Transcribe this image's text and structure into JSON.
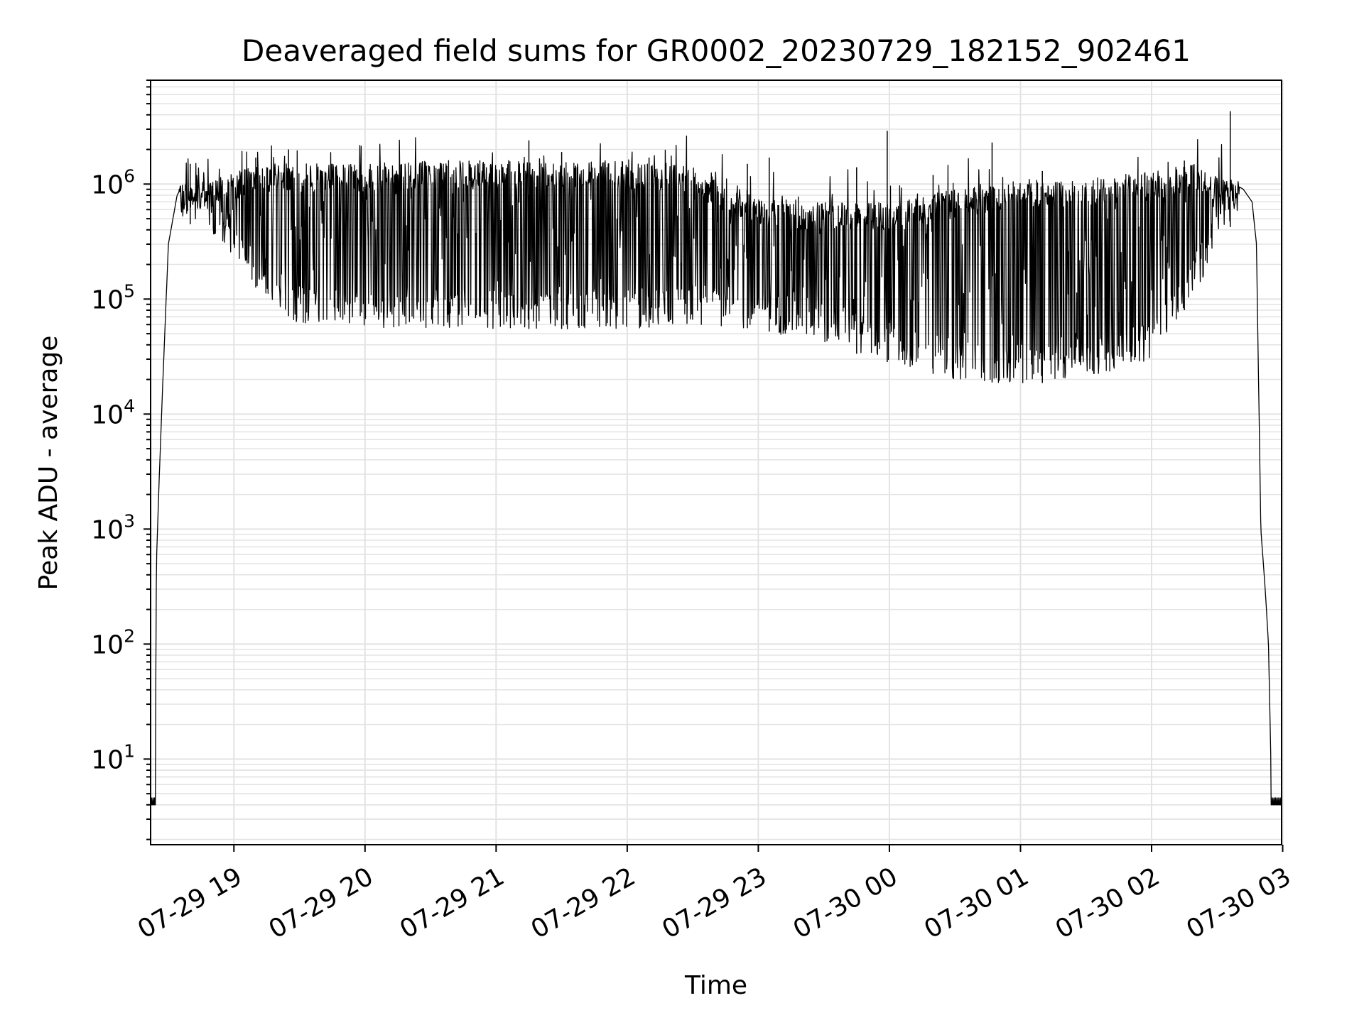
{
  "chart_data": {
    "type": "line",
    "title": "Deaveraged field sums for GR0002_20230729_182152_902461",
    "xlabel": "Time",
    "ylabel": "Peak ADU - average",
    "yscale": "log",
    "ylim": [
      1.8,
      8000000
    ],
    "xlim": [
      "2023-07-29 18:21:52",
      "2023-07-30 02:59:30"
    ],
    "x_tick_labels": [
      "07-29 19",
      "07-29 20",
      "07-29 21",
      "07-29 22",
      "07-29 23",
      "07-30 00",
      "07-30 01",
      "07-30 02",
      "07-30 03"
    ],
    "x_tick_times": [
      "2023-07-29 19:00",
      "2023-07-29 20:00",
      "2023-07-29 21:00",
      "2023-07-29 22:00",
      "2023-07-29 23:00",
      "2023-07-30 00:00",
      "2023-07-30 01:00",
      "2023-07-30 02:00",
      "2023-07-30 03:00"
    ],
    "y_tick_labels": [
      {
        "base": "10",
        "exp": "1",
        "value": 10
      },
      {
        "base": "10",
        "exp": "2",
        "value": 100
      },
      {
        "base": "10",
        "exp": "3",
        "value": 1000
      },
      {
        "base": "10",
        "exp": "4",
        "value": 10000
      },
      {
        "base": "10",
        "exp": "5",
        "value": 100000
      },
      {
        "base": "10",
        "exp": "6",
        "value": 1000000
      }
    ],
    "grid": true,
    "grid_minor": true,
    "line_color": "#000000",
    "grid_color": "#e3e3e3",
    "series": [
      {
        "upper_envelope": [
          [
            "2023-07-29 18:21:52",
            4
          ],
          [
            "2023-07-29 18:24:00",
            4
          ],
          [
            "2023-07-29 18:24:30",
            500
          ],
          [
            "2023-07-29 18:26:00",
            3500
          ],
          [
            "2023-07-29 18:27:30",
            20000
          ],
          [
            "2023-07-29 18:30:00",
            300000
          ],
          [
            "2023-07-29 18:34:00",
            800000
          ],
          [
            "2023-07-29 18:38:00",
            1100000
          ],
          [
            "2023-07-29 18:45:00",
            1000000
          ],
          [
            "2023-07-29 19:00:00",
            1300000
          ],
          [
            "2023-07-29 19:15:00",
            1500000
          ],
          [
            "2023-07-29 19:30:00",
            1500000
          ],
          [
            "2023-07-29 20:00:00",
            1500000
          ],
          [
            "2023-07-29 20:30:00",
            1600000
          ],
          [
            "2023-07-29 21:00:00",
            1600000
          ],
          [
            "2023-07-29 21:30:00",
            1600000
          ],
          [
            "2023-07-29 22:00:00",
            1600000
          ],
          [
            "2023-07-29 22:30:00",
            1500000
          ],
          [
            "2023-07-29 22:45:00",
            1000000
          ],
          [
            "2023-07-29 23:00:00",
            800000
          ],
          [
            "2023-07-29 23:20:00",
            700000
          ],
          [
            "2023-07-29 23:40:00",
            700000
          ],
          [
            "2023-07-30 00:00:00",
            700000
          ],
          [
            "2023-07-30 00:30:00",
            900000
          ],
          [
            "2023-07-30 01:00:00",
            1100000
          ],
          [
            "2023-07-30 01:30:00",
            1100000
          ],
          [
            "2023-07-30 02:00:00",
            1300000
          ],
          [
            "2023-07-30 02:20:00",
            1500000
          ],
          [
            "2023-07-30 02:38:00",
            1000000
          ],
          [
            "2023-07-30 02:42:00",
            900000
          ],
          [
            "2023-07-30 02:46:00",
            700000
          ],
          [
            "2023-07-30 02:48:00",
            300000
          ],
          [
            "2023-07-30 02:50:00",
            1000
          ],
          [
            "2023-07-30 02:52:00",
            300
          ],
          [
            "2023-07-30 02:53:30",
            100
          ],
          [
            "2023-07-30 02:55:00",
            4
          ],
          [
            "2023-07-30 02:59:30",
            4
          ]
        ],
        "lower_envelope": [
          [
            "2023-07-29 18:35:00",
            500000
          ],
          [
            "2023-07-29 18:45:00",
            400000
          ],
          [
            "2023-07-29 19:00:00",
            200000
          ],
          [
            "2023-07-29 19:15:00",
            100000
          ],
          [
            "2023-07-29 19:30:00",
            60000
          ],
          [
            "2023-07-29 20:00:00",
            55000
          ],
          [
            "2023-07-29 20:30:00",
            55000
          ],
          [
            "2023-07-29 21:00:00",
            55000
          ],
          [
            "2023-07-29 21:30:00",
            55000
          ],
          [
            "2023-07-29 22:00:00",
            55000
          ],
          [
            "2023-07-29 22:30:00",
            60000
          ],
          [
            "2023-07-29 23:00:00",
            55000
          ],
          [
            "2023-07-29 23:30:00",
            40000
          ],
          [
            "2023-07-30 00:00:00",
            28000
          ],
          [
            "2023-07-30 00:30:00",
            20000
          ],
          [
            "2023-07-30 01:00:00",
            18000
          ],
          [
            "2023-07-30 01:30:00",
            20000
          ],
          [
            "2023-07-30 02:00:00",
            30000
          ],
          [
            "2023-07-30 02:15:00",
            80000
          ],
          [
            "2023-07-30 02:30:00",
            250000
          ],
          [
            "2023-07-30 02:40:00",
            600000
          ]
        ],
        "spikes": [
          [
            "2023-07-29 18:40:00",
            1500000
          ],
          [
            "2023-07-29 19:10:00",
            1700000
          ],
          [
            "2023-07-29 19:25:00",
            2000000
          ],
          [
            "2023-07-29 21:15:00",
            2400000
          ],
          [
            "2023-07-29 21:30:00",
            1900000
          ],
          [
            "2023-07-29 22:10:00",
            1700000
          ],
          [
            "2023-07-29 22:55:00",
            1500000
          ],
          [
            "2023-07-29 23:05:00",
            1700000
          ],
          [
            "2023-07-29 23:45:00",
            1400000
          ],
          [
            "2023-07-29 23:59:00",
            2900000
          ],
          [
            "2023-07-30 00:20:00",
            1200000
          ],
          [
            "2023-07-30 00:47:00",
            2300000
          ],
          [
            "2023-07-30 01:10:00",
            1300000
          ],
          [
            "2023-07-30 02:15:00",
            1600000
          ],
          [
            "2023-07-30 02:36:00",
            4300000
          ]
        ]
      }
    ]
  }
}
